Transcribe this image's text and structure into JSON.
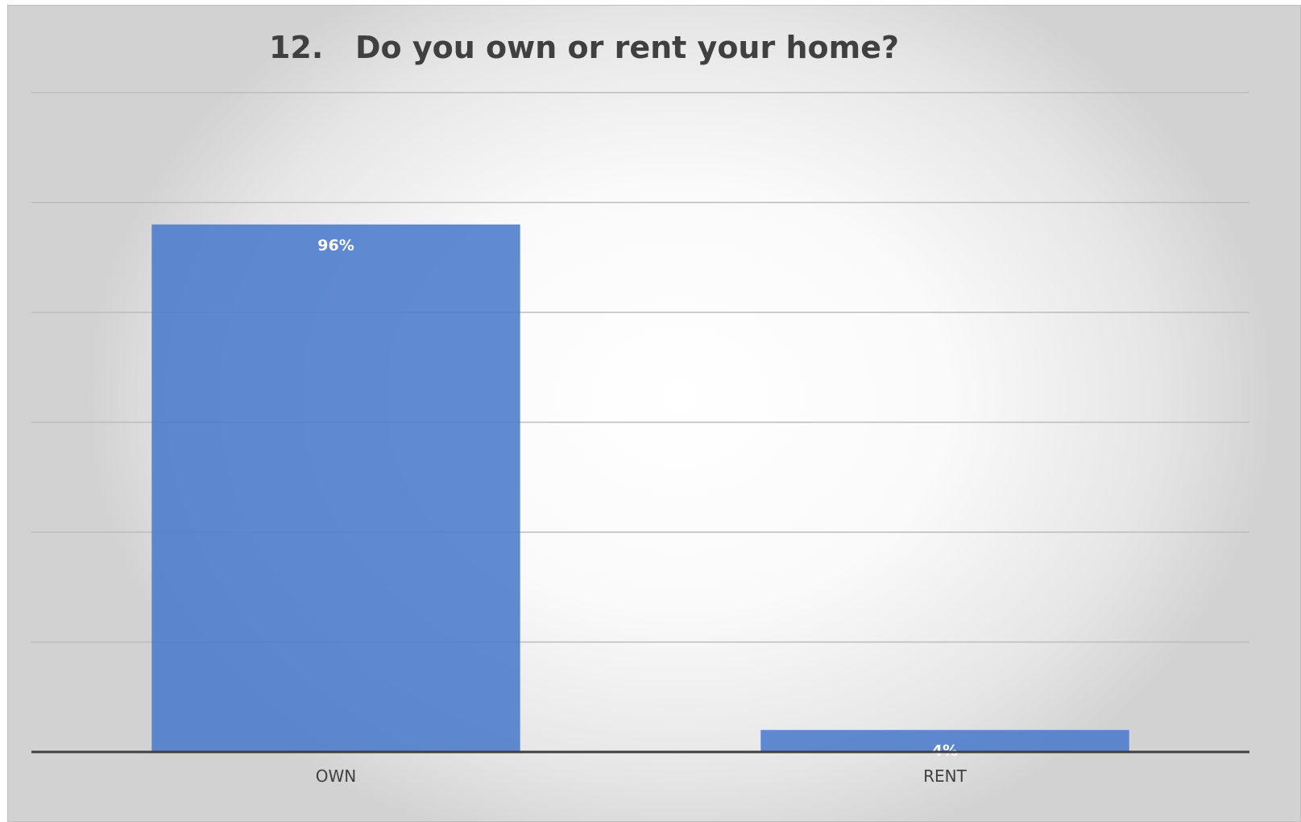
{
  "chart_data": {
    "type": "bar",
    "title": "12.   Do you own or rent your home?",
    "categories": [
      "OWN",
      "RENT"
    ],
    "values": [
      96,
      4
    ],
    "data_labels": [
      "96%",
      "4%"
    ],
    "ylim": [
      0,
      120
    ],
    "ytick_step": 20,
    "grid": true,
    "legend": "none",
    "bar_color": "#4472C4"
  }
}
